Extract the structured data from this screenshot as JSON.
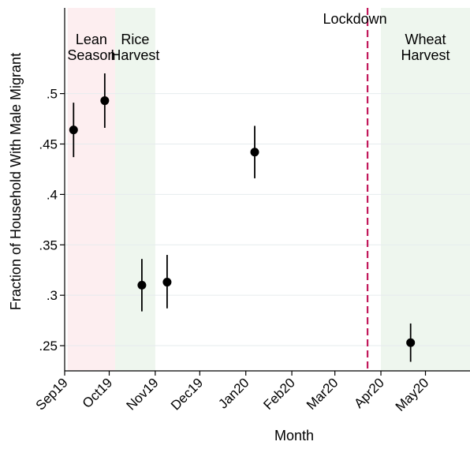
{
  "chart_data": {
    "type": "scatter",
    "title": "",
    "xlabel": "Month",
    "ylabel": "Fraction of Household With Male Migrant",
    "xlim": [
      "2019-09-01",
      "2020-05-31"
    ],
    "ylim": [
      0.225,
      0.585
    ],
    "grid": true,
    "x_tick_labels": [
      "Sep19",
      "Oct19",
      "Nov19",
      "Dec19",
      "Jan20",
      "Feb20",
      "Mar20",
      "Apr20",
      "May20"
    ],
    "x_ticks": [
      "2019-09-01",
      "2019-10-01",
      "2019-11-01",
      "2019-12-01",
      "2020-01-01",
      "2020-02-01",
      "2020-03-01",
      "2020-04-01",
      "2020-05-01"
    ],
    "y_tick_labels": [
      ".25",
      ".3",
      ".35",
      ".4",
      ".45",
      ".5"
    ],
    "y_ticks": [
      0.25,
      0.3,
      0.35,
      0.4,
      0.45,
      0.5
    ],
    "points": [
      {
        "x": "2019-09-07",
        "y": 0.464,
        "ci_low": 0.437,
        "ci_high": 0.491
      },
      {
        "x": "2019-09-28",
        "y": 0.493,
        "ci_low": 0.466,
        "ci_high": 0.52
      },
      {
        "x": "2019-10-23",
        "y": 0.31,
        "ci_low": 0.284,
        "ci_high": 0.336
      },
      {
        "x": "2019-11-09",
        "y": 0.313,
        "ci_low": 0.287,
        "ci_high": 0.34
      },
      {
        "x": "2020-01-07",
        "y": 0.442,
        "ci_low": 0.416,
        "ci_high": 0.468
      },
      {
        "x": "2020-04-21",
        "y": 0.253,
        "ci_low": 0.234,
        "ci_high": 0.272
      }
    ],
    "shaded_regions": [
      {
        "label_lines": [
          "Lean",
          "Season"
        ],
        "start": "2019-09-03",
        "end": "2019-10-05",
        "color": "#fdeef0"
      },
      {
        "label_lines": [
          "Rice",
          "Harvest"
        ],
        "start": "2019-10-05",
        "end": "2019-11-01",
        "color": "#eef6ee"
      },
      {
        "label_lines": [
          "Wheat",
          "Harvest"
        ],
        "start": "2020-04-01",
        "end": "2020-05-31",
        "color": "#eef6ee"
      }
    ],
    "vline": {
      "label": "Lockdown",
      "x": "2020-03-23",
      "color": "#c2185b"
    }
  }
}
